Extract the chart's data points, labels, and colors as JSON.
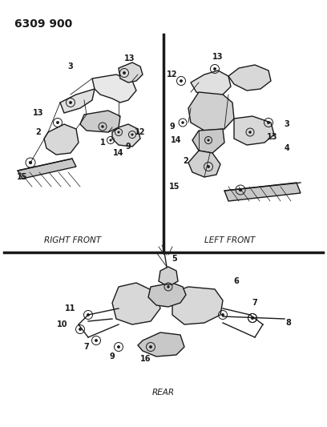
{
  "title": "6309 900",
  "bg_color": "#ffffff",
  "fig_width": 4.08,
  "fig_height": 5.33,
  "dpi": 100,
  "label_right_front": "RIGHT FRONT",
  "label_left_front": "LEFT FRONT",
  "label_rear": "REAR",
  "line_color": "#1a1a1a",
  "text_color": "#1a1a1a",
  "label_fontsize": 7.0,
  "title_fontsize": 10,
  "section_label_fontsize": 7.5
}
